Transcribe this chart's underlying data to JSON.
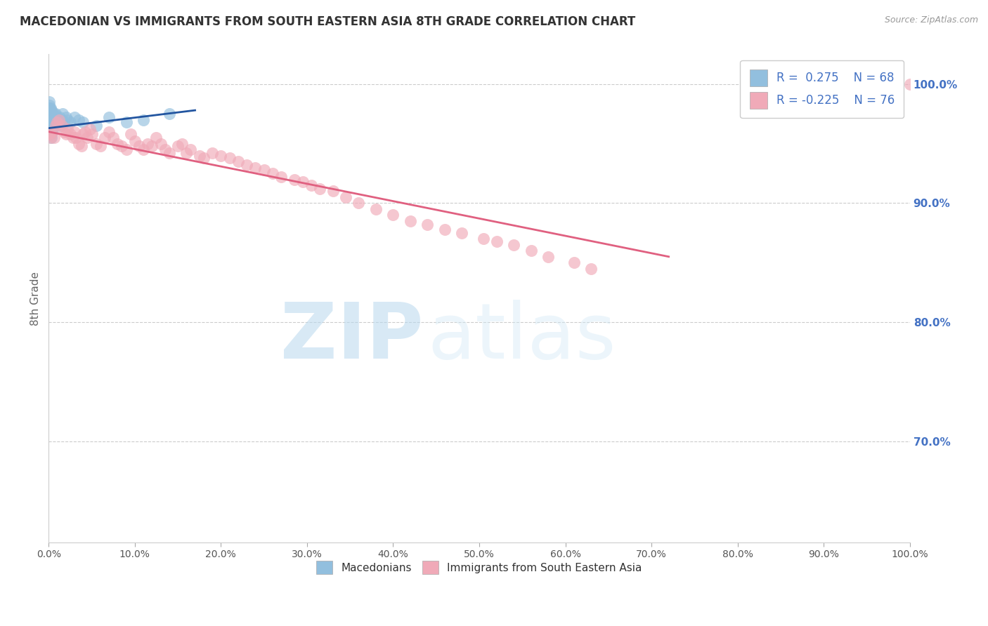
{
  "title": "MACEDONIAN VS IMMIGRANTS FROM SOUTH EASTERN ASIA 8TH GRADE CORRELATION CHART",
  "source": "Source: ZipAtlas.com",
  "ylabel": "8th Grade",
  "blue_R": 0.275,
  "blue_N": 68,
  "pink_R": -0.225,
  "pink_N": 76,
  "blue_color": "#92bfde",
  "pink_color": "#f0aab8",
  "blue_line_color": "#2255a0",
  "pink_line_color": "#e06080",
  "legend_blue_label": "Macedonians",
  "legend_pink_label": "Immigrants from South Eastern Asia",
  "xlim": [
    0.0,
    1.0
  ],
  "ylim": [
    0.615,
    1.025
  ],
  "right_yticks": [
    0.7,
    0.8,
    0.9,
    1.0
  ],
  "right_ytick_labels": [
    "70.0%",
    "80.0%",
    "90.0%",
    "100.0%"
  ],
  "grid_yticks": [
    0.7,
    0.8,
    0.9,
    1.0
  ],
  "background_color": "#ffffff",
  "grid_color": "#cccccc",
  "title_color": "#333333",
  "axis_label_color": "#666666",
  "right_tick_color": "#4472c4",
  "bottom_tick_labels": [
    "0.0%",
    "10.0%",
    "20.0%",
    "30.0%",
    "40.0%",
    "50.0%",
    "60.0%",
    "70.0%",
    "80.0%",
    "90.0%",
    "100.0%"
  ],
  "bottom_ticks": [
    0.0,
    0.1,
    0.2,
    0.3,
    0.4,
    0.5,
    0.6,
    0.7,
    0.8,
    0.9,
    1.0
  ],
  "blue_x": [
    0.001,
    0.001,
    0.001,
    0.001,
    0.001,
    0.001,
    0.001,
    0.001,
    0.001,
    0.001,
    0.002,
    0.002,
    0.002,
    0.002,
    0.002,
    0.002,
    0.002,
    0.002,
    0.002,
    0.002,
    0.003,
    0.003,
    0.003,
    0.003,
    0.003,
    0.003,
    0.003,
    0.003,
    0.004,
    0.004,
    0.004,
    0.004,
    0.004,
    0.004,
    0.005,
    0.005,
    0.005,
    0.005,
    0.006,
    0.006,
    0.006,
    0.007,
    0.007,
    0.008,
    0.008,
    0.009,
    0.009,
    0.01,
    0.01,
    0.011,
    0.012,
    0.013,
    0.014,
    0.015,
    0.016,
    0.018,
    0.02,
    0.022,
    0.025,
    0.03,
    0.035,
    0.04,
    0.055,
    0.07,
    0.09,
    0.11,
    0.14,
    0.85
  ],
  "blue_y": [
    0.975,
    0.98,
    0.97,
    0.965,
    0.985,
    0.978,
    0.972,
    0.96,
    0.968,
    0.982,
    0.975,
    0.97,
    0.98,
    0.965,
    0.96,
    0.972,
    0.978,
    0.968,
    0.962,
    0.958,
    0.975,
    0.97,
    0.968,
    0.965,
    0.96,
    0.972,
    0.978,
    0.955,
    0.972,
    0.968,
    0.965,
    0.975,
    0.97,
    0.96,
    0.975,
    0.972,
    0.968,
    0.965,
    0.97,
    0.975,
    0.968,
    0.972,
    0.965,
    0.968,
    0.975,
    0.97,
    0.965,
    0.972,
    0.968,
    0.97,
    0.968,
    0.972,
    0.965,
    0.97,
    0.975,
    0.968,
    0.972,
    0.97,
    0.968,
    0.972,
    0.97,
    0.968,
    0.965,
    0.972,
    0.968,
    0.97,
    0.975,
    1.0
  ],
  "pink_x": [
    0.001,
    0.002,
    0.004,
    0.006,
    0.008,
    0.01,
    0.012,
    0.015,
    0.018,
    0.02,
    0.022,
    0.025,
    0.028,
    0.03,
    0.032,
    0.035,
    0.038,
    0.04,
    0.042,
    0.045,
    0.048,
    0.05,
    0.055,
    0.06,
    0.065,
    0.07,
    0.075,
    0.08,
    0.085,
    0.09,
    0.095,
    0.1,
    0.105,
    0.11,
    0.115,
    0.12,
    0.125,
    0.13,
    0.135,
    0.14,
    0.15,
    0.155,
    0.16,
    0.165,
    0.175,
    0.18,
    0.19,
    0.2,
    0.21,
    0.22,
    0.23,
    0.24,
    0.25,
    0.26,
    0.27,
    0.285,
    0.295,
    0.305,
    0.315,
    0.33,
    0.345,
    0.36,
    0.38,
    0.4,
    0.42,
    0.44,
    0.46,
    0.48,
    0.505,
    0.52,
    0.54,
    0.56,
    0.58,
    0.61,
    0.63,
    1.0
  ],
  "pink_y": [
    0.958,
    0.955,
    0.96,
    0.955,
    0.965,
    0.968,
    0.97,
    0.965,
    0.96,
    0.958,
    0.962,
    0.958,
    0.955,
    0.96,
    0.955,
    0.95,
    0.948,
    0.958,
    0.96,
    0.955,
    0.962,
    0.958,
    0.95,
    0.948,
    0.955,
    0.96,
    0.955,
    0.95,
    0.948,
    0.945,
    0.958,
    0.952,
    0.948,
    0.945,
    0.95,
    0.948,
    0.955,
    0.95,
    0.945,
    0.942,
    0.948,
    0.95,
    0.942,
    0.945,
    0.94,
    0.938,
    0.942,
    0.94,
    0.938,
    0.935,
    0.932,
    0.93,
    0.928,
    0.925,
    0.922,
    0.92,
    0.918,
    0.915,
    0.912,
    0.91,
    0.905,
    0.9,
    0.895,
    0.89,
    0.885,
    0.882,
    0.878,
    0.875,
    0.87,
    0.868,
    0.865,
    0.86,
    0.855,
    0.85,
    0.845,
    1.0
  ],
  "blue_trendline_x": [
    0.0,
    0.17
  ],
  "blue_trendline_y": [
    0.963,
    0.978
  ],
  "pink_trendline_x": [
    0.0,
    0.72
  ],
  "pink_trendline_y": [
    0.96,
    0.855
  ]
}
